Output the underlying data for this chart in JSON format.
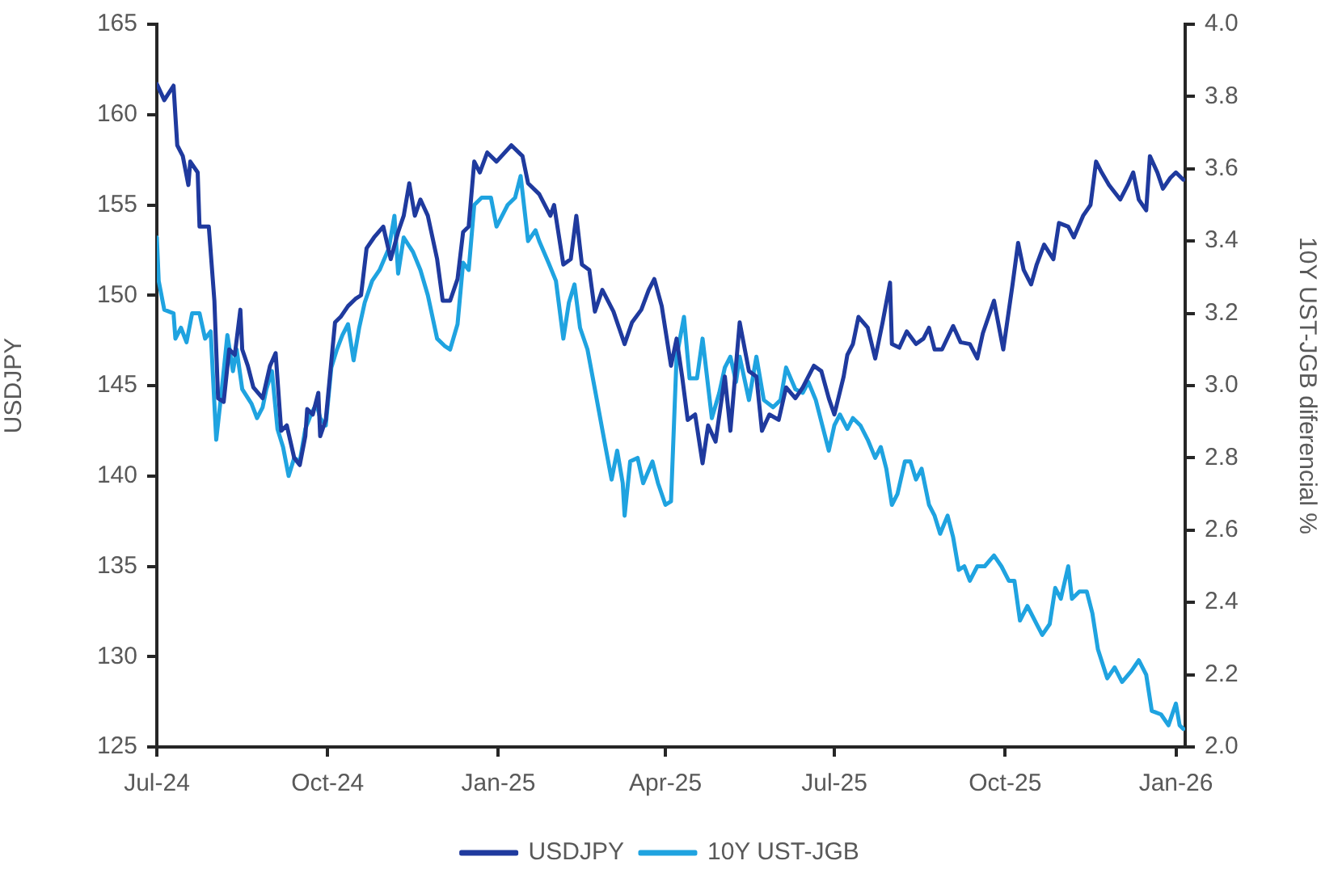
{
  "chart_data": {
    "type": "line",
    "xlabel": null,
    "ylabel": "USDJPY",
    "y2label": "10Y UST-JGB diferencial %",
    "xlim": [
      "2024-07-01",
      "2026-01-06"
    ],
    "xticks": [
      {
        "value": "2024-07-01",
        "label": "Jul-24"
      },
      {
        "value": "2024-10-01",
        "label": "Oct-24"
      },
      {
        "value": "2025-01-01",
        "label": "Jan-25"
      },
      {
        "value": "2025-04-01",
        "label": "Apr-25"
      },
      {
        "value": "2025-07-01",
        "label": "Jul-25"
      },
      {
        "value": "2025-10-01",
        "label": "Oct-25"
      },
      {
        "value": "2026-01-01",
        "label": "Jan-26"
      }
    ],
    "ylim": [
      125,
      165
    ],
    "yticks": [
      125,
      130,
      135,
      140,
      145,
      150,
      155,
      160,
      165
    ],
    "y2lim": [
      2,
      4
    ],
    "y2ticks": [
      {
        "value": 2,
        "label": "2.0"
      },
      {
        "value": 2.2,
        "label": "2.2"
      },
      {
        "value": 2.4,
        "label": "2.4"
      },
      {
        "value": 2.6,
        "label": "2.6"
      },
      {
        "value": 2.8,
        "label": "2.8"
      },
      {
        "value": 3,
        "label": "3.0"
      },
      {
        "value": 3.2,
        "label": "3.2"
      },
      {
        "value": 3.4,
        "label": "3.4"
      },
      {
        "value": 3.6,
        "label": "3.6"
      },
      {
        "value": 3.8,
        "label": "3.8"
      },
      {
        "value": 4,
        "label": "4.0"
      }
    ],
    "grid": false,
    "legend": "bottom",
    "marker": "none",
    "series": [
      {
        "name": "USDJPY",
        "color": "#1f3a9e",
        "x": [
          "2024-07-01",
          "2024-07-05",
          "2024-07-10",
          "2024-07-12",
          "2024-07-15",
          "2024-07-18",
          "2024-07-19",
          "2024-07-23",
          "2024-07-24",
          "2024-07-29",
          "2024-08-01",
          "2024-08-03",
          "2024-08-06",
          "2024-08-09",
          "2024-08-12",
          "2024-08-15",
          "2024-08-16",
          "2024-08-19",
          "2024-08-22",
          "2024-08-27",
          "2024-08-31",
          "2024-09-03",
          "2024-09-06",
          "2024-09-09",
          "2024-09-13",
          "2024-09-16",
          "2024-09-19",
          "2024-09-20",
          "2024-09-23",
          "2024-09-26",
          "2024-09-27",
          "2024-09-30",
          "2024-10-05",
          "2024-10-08",
          "2024-10-12",
          "2024-10-16",
          "2024-10-19",
          "2024-10-22",
          "2024-10-26",
          "2024-10-31",
          "2024-11-04",
          "2024-11-08",
          "2024-11-11",
          "2024-11-14",
          "2024-11-17",
          "2024-11-20",
          "2024-11-24",
          "2024-11-29",
          "2024-12-02",
          "2024-12-06",
          "2024-12-10",
          "2024-12-13",
          "2024-12-16",
          "2024-12-19",
          "2024-12-22",
          "2024-12-26",
          "2024-12-31",
          "2025-01-08",
          "2025-01-14",
          "2025-01-17",
          "2025-01-23",
          "2025-01-29",
          "2025-01-31",
          "2025-02-05",
          "2025-02-09",
          "2025-02-12",
          "2025-02-15",
          "2025-02-19",
          "2025-02-22",
          "2025-02-26",
          "2025-03-04",
          "2025-03-10",
          "2025-03-14",
          "2025-03-19",
          "2025-03-23",
          "2025-03-26",
          "2025-03-30",
          "2025-04-04",
          "2025-04-07",
          "2025-04-10",
          "2025-04-13",
          "2025-04-17",
          "2025-04-21",
          "2025-04-24",
          "2025-04-28",
          "2025-05-03",
          "2025-05-06",
          "2025-05-09",
          "2025-05-11",
          "2025-05-16",
          "2025-05-20",
          "2025-05-23",
          "2025-05-27",
          "2025-06-01",
          "2025-06-05",
          "2025-06-10",
          "2025-06-14",
          "2025-06-20",
          "2025-06-24",
          "2025-06-28",
          "2025-07-01",
          "2025-07-06",
          "2025-07-08",
          "2025-07-11",
          "2025-07-14",
          "2025-07-19",
          "2025-07-23",
          "2025-07-27",
          "2025-07-31",
          "2025-08-01",
          "2025-08-05",
          "2025-08-09",
          "2025-08-14",
          "2025-08-18",
          "2025-08-21",
          "2025-08-24",
          "2025-08-28",
          "2025-09-03",
          "2025-09-07",
          "2025-09-12",
          "2025-09-16",
          "2025-09-19",
          "2025-09-25",
          "2025-09-30",
          "2025-10-05",
          "2025-10-08",
          "2025-10-11",
          "2025-10-15",
          "2025-10-18",
          "2025-10-22",
          "2025-10-27",
          "2025-10-30",
          "2025-11-04",
          "2025-11-07",
          "2025-11-12",
          "2025-11-16",
          "2025-11-19",
          "2025-11-22",
          "2025-11-26",
          "2025-12-02",
          "2025-12-06",
          "2025-12-09",
          "2025-12-12",
          "2025-12-16",
          "2025-12-18",
          "2025-12-22",
          "2025-12-25",
          "2025-12-29",
          "2026-01-01",
          "2026-01-05"
        ],
        "values": [
          161.7,
          160.8,
          161.6,
          158.3,
          157.7,
          156.1,
          157.4,
          156.8,
          153.8,
          153.8,
          149.7,
          144.3,
          144.1,
          147.0,
          146.7,
          149.2,
          147.0,
          146.1,
          144.9,
          144.3,
          146.1,
          146.8,
          142.5,
          142.8,
          141.0,
          140.6,
          142.2,
          143.7,
          143.4,
          144.6,
          142.2,
          143.1,
          148.5,
          148.8,
          149.4,
          149.8,
          150.0,
          152.6,
          153.2,
          153.8,
          152.0,
          153.5,
          154.4,
          156.2,
          154.4,
          155.3,
          154.4,
          152.0,
          149.7,
          149.7,
          150.9,
          153.5,
          153.8,
          157.4,
          156.8,
          157.9,
          157.4,
          158.3,
          157.7,
          156.2,
          155.6,
          154.4,
          155.0,
          151.7,
          152.0,
          154.4,
          151.7,
          151.4,
          149.1,
          150.3,
          149.1,
          147.3,
          148.5,
          149.2,
          150.3,
          150.9,
          149.4,
          146.1,
          147.6,
          145.5,
          143.1,
          143.4,
          140.7,
          142.8,
          141.9,
          145.5,
          142.5,
          146.1,
          148.5,
          145.8,
          145.5,
          142.5,
          143.4,
          143.1,
          144.9,
          144.3,
          144.9,
          146.1,
          145.8,
          144.3,
          143.4,
          145.5,
          146.7,
          147.3,
          148.8,
          148.2,
          146.5,
          148.5,
          150.7,
          147.3,
          147.1,
          148.0,
          147.3,
          147.6,
          148.2,
          147.0,
          147.0,
          148.3,
          147.4,
          147.3,
          146.5,
          147.9,
          149.7,
          147.0,
          150.6,
          152.9,
          151.4,
          150.6,
          151.7,
          152.8,
          152.0,
          154.0,
          153.8,
          153.2,
          154.4,
          155.0,
          157.4,
          156.8,
          156.1,
          155.3,
          156.1,
          156.8,
          155.3,
          154.7,
          157.7,
          156.8,
          155.9,
          156.5,
          156.8,
          156.4
        ]
      },
      {
        "name": "10Y UST-JGB",
        "color": "#1fa3e0",
        "axis": "y2",
        "x": [
          "2024-07-01",
          "2024-07-02",
          "2024-07-05",
          "2024-07-10",
          "2024-07-11",
          "2024-07-14",
          "2024-07-17",
          "2024-07-20",
          "2024-07-24",
          "2024-07-27",
          "2024-07-30",
          "2024-08-02",
          "2024-08-05",
          "2024-08-08",
          "2024-08-11",
          "2024-08-13",
          "2024-08-16",
          "2024-08-21",
          "2024-08-24",
          "2024-08-27",
          "2024-08-29",
          "2024-09-01",
          "2024-09-04",
          "2024-09-07",
          "2024-09-10",
          "2024-09-13",
          "2024-09-16",
          "2024-09-19",
          "2024-09-22",
          "2024-09-25",
          "2024-09-27",
          "2024-09-30",
          "2024-10-03",
          "2024-10-06",
          "2024-10-09",
          "2024-10-12",
          "2024-10-15",
          "2024-10-18",
          "2024-10-21",
          "2024-10-25",
          "2024-10-29",
          "2024-11-03",
          "2024-11-06",
          "2024-11-08",
          "2024-11-11",
          "2024-11-16",
          "2024-11-20",
          "2024-11-24",
          "2024-11-29",
          "2024-12-03",
          "2024-12-06",
          "2024-12-10",
          "2024-12-13",
          "2024-12-16",
          "2024-12-19",
          "2024-12-23",
          "2024-12-28",
          "2024-12-31",
          "2025-01-06",
          "2025-01-10",
          "2025-01-13",
          "2025-01-17",
          "2025-01-21",
          "2025-01-23",
          "2025-01-28",
          "2025-02-01",
          "2025-02-05",
          "2025-02-08",
          "2025-02-11",
          "2025-02-14",
          "2025-02-18",
          "2025-02-22",
          "2025-02-27",
          "2025-03-03",
          "2025-03-06",
          "2025-03-09",
          "2025-03-10",
          "2025-03-13",
          "2025-03-17",
          "2025-03-20",
          "2025-03-25",
          "2025-03-28",
          "2025-04-01",
          "2025-04-04",
          "2025-04-07",
          "2025-04-11",
          "2025-04-14",
          "2025-04-18",
          "2025-04-21",
          "2025-04-26",
          "2025-04-30",
          "2025-05-03",
          "2025-05-06",
          "2025-05-09",
          "2025-05-11",
          "2025-05-16",
          "2025-05-20",
          "2025-05-24",
          "2025-05-29",
          "2025-06-02",
          "2025-06-05",
          "2025-06-10",
          "2025-06-14",
          "2025-06-17",
          "2025-06-21",
          "2025-06-25",
          "2025-06-28",
          "2025-07-01",
          "2025-07-04",
          "2025-07-08",
          "2025-07-11",
          "2025-07-15",
          "2025-07-19",
          "2025-07-23",
          "2025-07-26",
          "2025-07-29",
          "2025-08-01",
          "2025-08-04",
          "2025-08-08",
          "2025-08-11",
          "2025-08-14",
          "2025-08-17",
          "2025-08-21",
          "2025-08-24",
          "2025-08-27",
          "2025-08-31",
          "2025-09-03",
          "2025-09-06",
          "2025-09-09",
          "2025-09-12",
          "2025-09-16",
          "2025-09-20",
          "2025-09-25",
          "2025-09-29",
          "2025-10-03",
          "2025-10-06",
          "2025-10-09",
          "2025-10-13",
          "2025-10-18",
          "2025-10-21",
          "2025-10-25",
          "2025-10-28",
          "2025-10-31",
          "2025-11-04",
          "2025-11-06",
          "2025-11-10",
          "2025-11-14",
          "2025-11-17",
          "2025-11-20",
          "2025-11-25",
          "2025-11-29",
          "2025-12-03",
          "2025-12-08",
          "2025-12-12",
          "2025-12-16",
          "2025-12-19",
          "2025-12-24",
          "2025-12-28",
          "2026-01-01",
          "2026-01-03",
          "2026-01-05"
        ],
        "values": [
          3.41,
          3.29,
          3.21,
          3.2,
          3.13,
          3.16,
          3.12,
          3.2,
          3.2,
          3.13,
          3.15,
          2.85,
          2.99,
          3.14,
          3.04,
          3.1,
          2.99,
          2.95,
          2.91,
          2.94,
          2.99,
          3.04,
          2.88,
          2.83,
          2.75,
          2.8,
          2.79,
          2.88,
          2.92,
          2.95,
          2.91,
          2.89,
          3.05,
          3.1,
          3.14,
          3.17,
          3.07,
          3.16,
          3.23,
          3.29,
          3.32,
          3.38,
          3.47,
          3.31,
          3.41,
          3.37,
          3.32,
          3.25,
          3.13,
          3.11,
          3.1,
          3.17,
          3.34,
          3.32,
          3.5,
          3.52,
          3.52,
          3.44,
          3.5,
          3.52,
          3.58,
          3.4,
          3.43,
          3.4,
          3.34,
          3.29,
          3.13,
          3.23,
          3.28,
          3.16,
          3.1,
          2.99,
          2.85,
          2.74,
          2.82,
          2.73,
          2.64,
          2.79,
          2.8,
          2.73,
          2.79,
          2.73,
          2.67,
          2.68,
          3.08,
          3.19,
          3.02,
          3.02,
          3.13,
          2.91,
          2.98,
          3.05,
          3.08,
          3.01,
          3.08,
          2.96,
          3.08,
          2.96,
          2.94,
          2.96,
          3.05,
          2.99,
          2.98,
          3.01,
          2.96,
          2.88,
          2.82,
          2.89,
          2.92,
          2.88,
          2.91,
          2.89,
          2.85,
          2.8,
          2.83,
          2.77,
          2.67,
          2.7,
          2.79,
          2.79,
          2.74,
          2.77,
          2.67,
          2.64,
          2.59,
          2.64,
          2.58,
          2.49,
          2.5,
          2.46,
          2.5,
          2.5,
          2.53,
          2.5,
          2.46,
          2.46,
          2.35,
          2.39,
          2.34,
          2.31,
          2.34,
          2.44,
          2.41,
          2.5,
          2.41,
          2.43,
          2.43,
          2.37,
          2.27,
          2.19,
          2.22,
          2.18,
          2.21,
          2.24,
          2.2,
          2.1,
          2.09,
          2.06,
          2.12,
          2.06,
          2.05
        ]
      }
    ]
  }
}
